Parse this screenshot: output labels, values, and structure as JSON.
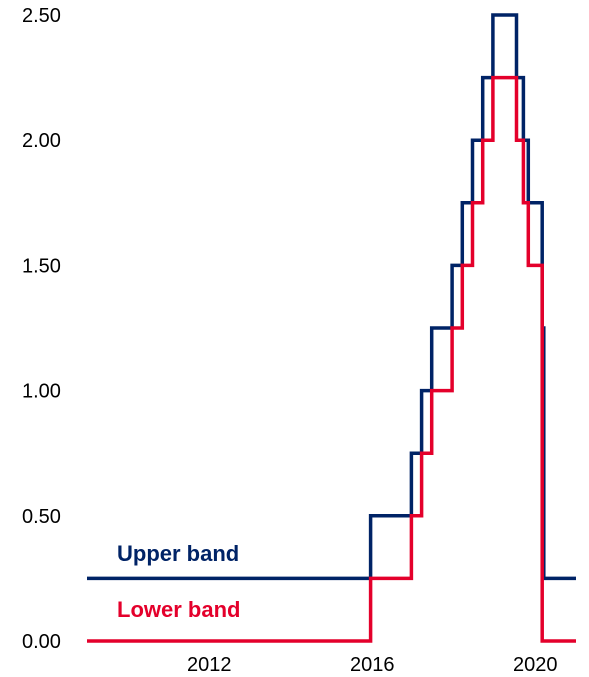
{
  "chart_data": {
    "type": "line",
    "title": "",
    "xlabel": "",
    "ylabel": "",
    "xlim": [
      2009.0,
      2021.0
    ],
    "ylim": [
      0,
      2.5
    ],
    "grid": false,
    "y_ticks": [
      {
        "value": 0.0,
        "label": "0.00"
      },
      {
        "value": 0.5,
        "label": "0.50"
      },
      {
        "value": 1.0,
        "label": "1.00"
      },
      {
        "value": 1.5,
        "label": "1.50"
      },
      {
        "value": 2.0,
        "label": "2.00"
      },
      {
        "value": 2.5,
        "label": "2.50"
      }
    ],
    "x_ticks": [
      {
        "value": 2012,
        "label": "2012"
      },
      {
        "value": 2016,
        "label": "2016"
      },
      {
        "value": 2020,
        "label": "2020"
      }
    ],
    "series": [
      {
        "name": "Upper band",
        "color": "#002366",
        "step": true,
        "points": [
          [
            2009.0,
            0.25
          ],
          [
            2015.96,
            0.25
          ],
          [
            2015.96,
            0.5
          ],
          [
            2016.96,
            0.5
          ],
          [
            2016.96,
            0.75
          ],
          [
            2017.21,
            0.75
          ],
          [
            2017.21,
            1.0
          ],
          [
            2017.46,
            1.0
          ],
          [
            2017.46,
            1.25
          ],
          [
            2017.96,
            1.25
          ],
          [
            2017.96,
            1.5
          ],
          [
            2018.21,
            1.5
          ],
          [
            2018.21,
            1.75
          ],
          [
            2018.46,
            1.75
          ],
          [
            2018.46,
            2.0
          ],
          [
            2018.71,
            2.0
          ],
          [
            2018.71,
            2.25
          ],
          [
            2018.96,
            2.25
          ],
          [
            2018.96,
            2.5
          ],
          [
            2019.54,
            2.5
          ],
          [
            2019.54,
            2.25
          ],
          [
            2019.71,
            2.25
          ],
          [
            2019.71,
            2.0
          ],
          [
            2019.83,
            2.0
          ],
          [
            2019.83,
            1.75
          ],
          [
            2020.17,
            1.75
          ],
          [
            2020.17,
            1.25
          ],
          [
            2020.21,
            1.25
          ],
          [
            2020.21,
            0.25
          ],
          [
            2021.0,
            0.25
          ]
        ]
      },
      {
        "name": "Lower band",
        "color": "#e4002b",
        "step": true,
        "points": [
          [
            2009.0,
            0.0
          ],
          [
            2015.96,
            0.0
          ],
          [
            2015.96,
            0.25
          ],
          [
            2016.96,
            0.25
          ],
          [
            2016.96,
            0.5
          ],
          [
            2017.21,
            0.5
          ],
          [
            2017.21,
            0.75
          ],
          [
            2017.46,
            0.75
          ],
          [
            2017.46,
            1.0
          ],
          [
            2017.96,
            1.0
          ],
          [
            2017.96,
            1.25
          ],
          [
            2018.21,
            1.25
          ],
          [
            2018.21,
            1.5
          ],
          [
            2018.46,
            1.5
          ],
          [
            2018.46,
            1.75
          ],
          [
            2018.71,
            1.75
          ],
          [
            2018.71,
            2.0
          ],
          [
            2018.96,
            2.0
          ],
          [
            2018.96,
            2.25
          ],
          [
            2019.54,
            2.25
          ],
          [
            2019.54,
            2.0
          ],
          [
            2019.71,
            2.0
          ],
          [
            2019.71,
            1.75
          ],
          [
            2019.83,
            1.75
          ],
          [
            2019.83,
            1.5
          ],
          [
            2020.17,
            1.5
          ],
          [
            2020.17,
            0.0
          ],
          [
            2021.0,
            0.0
          ]
        ]
      }
    ],
    "annotations": [
      {
        "text": "Upper band",
        "series": "Upper band"
      },
      {
        "text": "Lower band",
        "series": "Lower band"
      }
    ]
  }
}
